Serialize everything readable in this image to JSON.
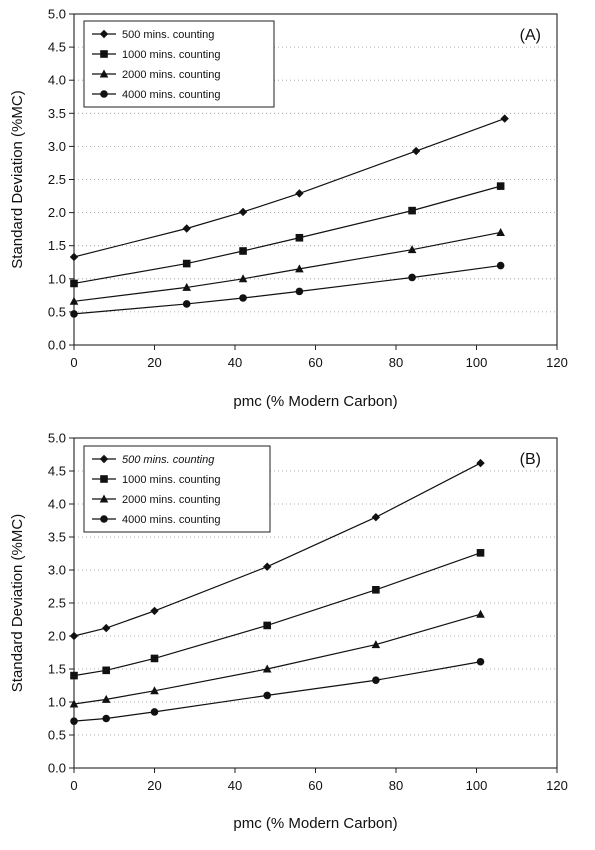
{
  "chart_data": [
    {
      "type": "line",
      "panel_label": "(A)",
      "xlabel": "pmc (% Modern Carbon)",
      "ylabel": "Standard Deviation (%MC)",
      "xlim": [
        0,
        120
      ],
      "ylim": [
        0,
        5
      ],
      "x_ticks": [
        "0",
        "20",
        "40",
        "60",
        "80",
        "100",
        "120"
      ],
      "y_ticks": [
        "0.0",
        "0.5",
        "1.0",
        "1.5",
        "2.0",
        "2.5",
        "3.0",
        "3.5",
        "4.0",
        "4.5",
        "5.0"
      ],
      "grid": "horizontal dotted",
      "legend_position": "top-left",
      "x": [
        0,
        28,
        42,
        56,
        85,
        107
      ],
      "series": [
        {
          "name": "500 mins. counting",
          "marker": "diamond",
          "x": [
            0,
            28,
            42,
            56,
            85,
            107
          ],
          "values": [
            1.33,
            1.76,
            2.01,
            2.29,
            2.93,
            3.42
          ]
        },
        {
          "name": "1000 mins. counting",
          "marker": "square",
          "x": [
            0,
            28,
            42,
            56,
            84,
            106
          ],
          "values": [
            0.93,
            1.23,
            1.42,
            1.62,
            2.03,
            2.4
          ]
        },
        {
          "name": "2000 mins. counting",
          "marker": "triangle",
          "x": [
            0,
            28,
            42,
            56,
            84,
            106
          ],
          "values": [
            0.66,
            0.87,
            1.0,
            1.15,
            1.44,
            1.7
          ]
        },
        {
          "name": "4000 mins. counting",
          "marker": "circle",
          "x": [
            0,
            28,
            42,
            56,
            84,
            106
          ],
          "values": [
            0.47,
            0.62,
            0.71,
            0.81,
            1.02,
            1.2
          ]
        }
      ]
    },
    {
      "type": "line",
      "panel_label": "(B)",
      "xlabel": "pmc (% Modern Carbon)",
      "ylabel": "Standard Deviation (%MC)",
      "xlim": [
        0,
        120
      ],
      "ylim": [
        0,
        5
      ],
      "x_ticks": [
        "0",
        "20",
        "40",
        "60",
        "80",
        "100",
        "120"
      ],
      "y_ticks": [
        "0.0",
        "0.5",
        "1.0",
        "1.5",
        "2.0",
        "2.5",
        "3.0",
        "3.5",
        "4.0",
        "4.5",
        "5.0"
      ],
      "grid": "horizontal dotted",
      "legend_position": "top-left",
      "series": [
        {
          "name": "500 mins. counting",
          "italic": true,
          "marker": "diamond",
          "x": [
            0,
            8,
            20,
            48,
            75,
            101
          ],
          "values": [
            2.0,
            2.12,
            2.38,
            3.05,
            3.8,
            4.62
          ]
        },
        {
          "name": "1000 mins. counting",
          "marker": "square",
          "x": [
            0,
            8,
            20,
            48,
            75,
            101
          ],
          "values": [
            1.4,
            1.48,
            1.66,
            2.16,
            2.7,
            3.26
          ]
        },
        {
          "name": "2000 mins. counting",
          "marker": "triangle",
          "x": [
            0,
            8,
            20,
            48,
            75,
            101
          ],
          "values": [
            0.97,
            1.04,
            1.17,
            1.5,
            1.87,
            2.33
          ]
        },
        {
          "name": "4000 mins. counting",
          "marker": "circle",
          "x": [
            0,
            8,
            20,
            48,
            75,
            101
          ],
          "values": [
            0.71,
            0.75,
            0.85,
            1.1,
            1.33,
            1.61
          ]
        }
      ]
    }
  ]
}
